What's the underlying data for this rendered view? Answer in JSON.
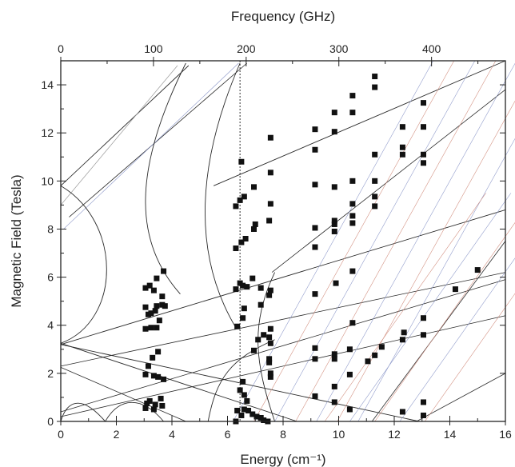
{
  "chart_data": {
    "type": "scatter",
    "x_axis": {
      "label": "Energy (cm⁻¹)",
      "range": [
        0,
        16
      ],
      "ticks": [
        0,
        2,
        4,
        6,
        8,
        10,
        12,
        14,
        16
      ]
    },
    "x2_axis": {
      "label": "Frequency (GHz)",
      "ticks_ghz": [
        0,
        100,
        200,
        300,
        400
      ]
    },
    "y_axis": {
      "label": "Magnetic Field (Tesla)",
      "range": [
        0,
        15
      ],
      "ticks": [
        0,
        2,
        4,
        6,
        8,
        10,
        12,
        14
      ]
    },
    "reference_line": {
      "x": 6.45,
      "style": "dotted"
    },
    "points": [
      [
        3.05,
        0.55
      ],
      [
        3.1,
        0.75
      ],
      [
        3.2,
        0.85
      ],
      [
        3.35,
        0.5
      ],
      [
        3.4,
        0.7
      ],
      [
        3.6,
        0.95
      ],
      [
        3.65,
        0.65
      ],
      [
        3.05,
        1.95
      ],
      [
        3.15,
        2.3
      ],
      [
        3.35,
        1.9
      ],
      [
        3.5,
        1.85
      ],
      [
        3.3,
        2.65
      ],
      [
        3.5,
        2.9
      ],
      [
        3.7,
        1.75
      ],
      [
        3.05,
        3.85
      ],
      [
        3.25,
        3.9
      ],
      [
        3.45,
        3.9
      ],
      [
        3.55,
        4.2
      ],
      [
        3.05,
        4.75
      ],
      [
        3.15,
        4.45
      ],
      [
        3.25,
        4.5
      ],
      [
        3.4,
        4.6
      ],
      [
        3.45,
        4.8
      ],
      [
        3.65,
        4.85
      ],
      [
        3.75,
        4.8
      ],
      [
        3.05,
        5.55
      ],
      [
        3.2,
        5.65
      ],
      [
        3.35,
        5.45
      ],
      [
        3.45,
        5.95
      ],
      [
        3.65,
        5.2
      ],
      [
        3.7,
        6.25
      ],
      [
        6.3,
        0.0
      ],
      [
        6.35,
        0.45
      ],
      [
        6.5,
        0.25
      ],
      [
        6.6,
        0.5
      ],
      [
        6.75,
        0.45
      ],
      [
        6.9,
        0.3
      ],
      [
        7.05,
        0.2
      ],
      [
        7.2,
        0.15
      ],
      [
        7.3,
        0.05
      ],
      [
        7.45,
        0.0
      ],
      [
        6.45,
        1.3
      ],
      [
        6.55,
        1.65
      ],
      [
        6.6,
        1.1
      ],
      [
        6.7,
        0.85
      ],
      [
        7.55,
        1.85
      ],
      [
        7.55,
        2.0
      ],
      [
        7.5,
        2.45
      ],
      [
        7.5,
        2.6
      ],
      [
        7.55,
        3.25
      ],
      [
        7.5,
        3.5
      ],
      [
        7.55,
        3.85
      ],
      [
        6.95,
        2.95
      ],
      [
        7.1,
        3.4
      ],
      [
        7.3,
        3.6
      ],
      [
        6.35,
        3.95
      ],
      [
        6.55,
        4.3
      ],
      [
        6.6,
        4.7
      ],
      [
        6.3,
        5.5
      ],
      [
        6.45,
        5.75
      ],
      [
        6.55,
        5.65
      ],
      [
        6.7,
        5.6
      ],
      [
        6.9,
        5.95
      ],
      [
        7.2,
        5.55
      ],
      [
        7.5,
        5.25
      ],
      [
        7.55,
        5.45
      ],
      [
        7.2,
        4.85
      ],
      [
        6.3,
        7.2
      ],
      [
        6.5,
        7.45
      ],
      [
        6.65,
        7.6
      ],
      [
        6.95,
        8.0
      ],
      [
        7.0,
        8.2
      ],
      [
        7.5,
        8.35
      ],
      [
        7.55,
        9.05
      ],
      [
        6.3,
        8.95
      ],
      [
        6.45,
        9.2
      ],
      [
        6.6,
        9.35
      ],
      [
        6.95,
        9.75
      ],
      [
        7.55,
        10.35
      ],
      [
        6.5,
        10.8
      ],
      [
        7.55,
        11.8
      ],
      [
        9.15,
        1.05
      ],
      [
        9.15,
        2.6
      ],
      [
        9.15,
        3.05
      ],
      [
        9.85,
        0.8
      ],
      [
        9.85,
        1.45
      ],
      [
        9.85,
        2.6
      ],
      [
        9.85,
        2.8
      ],
      [
        10.4,
        0.5
      ],
      [
        10.4,
        1.95
      ],
      [
        10.4,
        3.0
      ],
      [
        10.5,
        4.1
      ],
      [
        10.5,
        6.25
      ],
      [
        9.15,
        5.3
      ],
      [
        9.9,
        5.75
      ],
      [
        9.15,
        7.25
      ],
      [
        9.15,
        8.05
      ],
      [
        9.15,
        9.85
      ],
      [
        9.15,
        11.3
      ],
      [
        9.15,
        12.15
      ],
      [
        9.85,
        7.9
      ],
      [
        9.85,
        8.2
      ],
      [
        9.85,
        8.35
      ],
      [
        9.85,
        9.75
      ],
      [
        9.85,
        12.05
      ],
      [
        9.85,
        12.85
      ],
      [
        10.5,
        8.25
      ],
      [
        10.5,
        8.55
      ],
      [
        10.5,
        9.05
      ],
      [
        10.5,
        10.0
      ],
      [
        10.5,
        12.85
      ],
      [
        10.5,
        13.55
      ],
      [
        11.05,
        2.5
      ],
      [
        11.3,
        2.75
      ],
      [
        11.55,
        3.1
      ],
      [
        11.3,
        8.95
      ],
      [
        11.3,
        9.35
      ],
      [
        11.3,
        10.0
      ],
      [
        11.3,
        11.1
      ],
      [
        11.3,
        13.9
      ],
      [
        11.3,
        14.35
      ],
      [
        12.3,
        0.4
      ],
      [
        12.3,
        3.4
      ],
      [
        12.35,
        3.7
      ],
      [
        12.3,
        11.1
      ],
      [
        12.3,
        11.4
      ],
      [
        12.3,
        12.25
      ],
      [
        13.05,
        0.25
      ],
      [
        13.05,
        0.8
      ],
      [
        13.05,
        3.6
      ],
      [
        13.05,
        4.3
      ],
      [
        13.05,
        10.75
      ],
      [
        13.05,
        11.1
      ],
      [
        13.05,
        12.25
      ],
      [
        13.05,
        13.25
      ],
      [
        14.2,
        5.5
      ],
      [
        15.0,
        6.3
      ]
    ]
  }
}
